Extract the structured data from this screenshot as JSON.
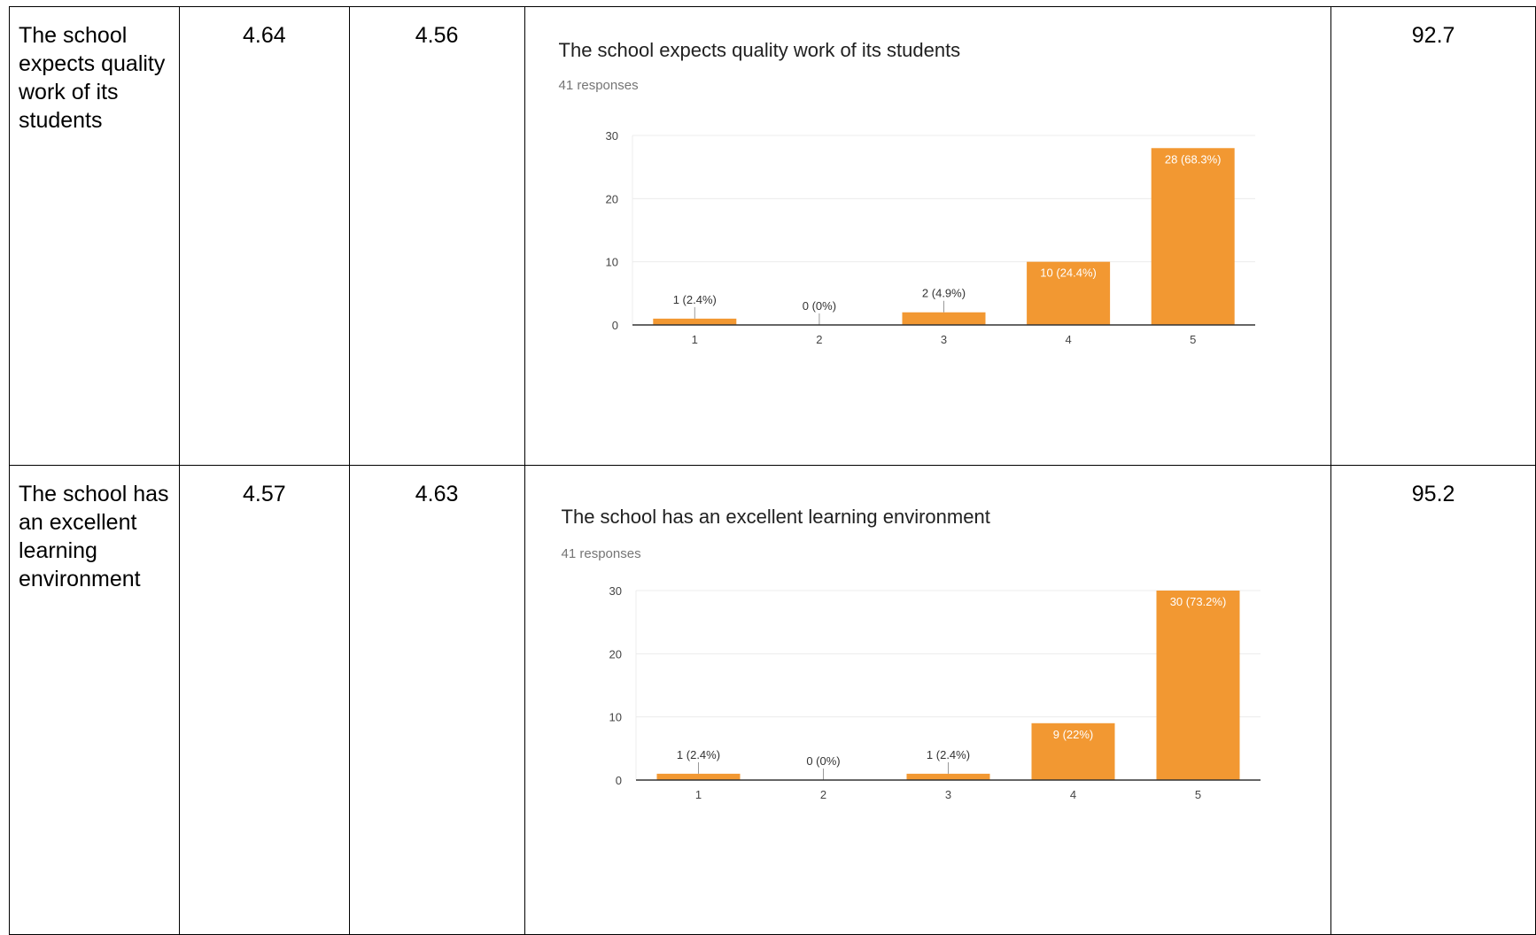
{
  "rows": [
    {
      "label": "The school expects quality work of its students",
      "value_a": "4.64",
      "value_b": "4.56",
      "percent": "92.7"
    },
    {
      "label": "The school has an excellent learning environment",
      "value_a": "4.57",
      "value_b": "4.63",
      "percent": "95.2"
    }
  ],
  "colors": {
    "bar": "#F29832",
    "grid": "#ECECEC",
    "axis": "#333333",
    "tick_text": "#444444",
    "label_outside": "#333333",
    "label_inside": "#FFFFFF"
  },
  "chart_data": [
    {
      "type": "bar",
      "title": "The school expects quality work of its students",
      "subtitle": "41 responses",
      "categories": [
        "1",
        "2",
        "3",
        "4",
        "5"
      ],
      "values": [
        1,
        0,
        2,
        10,
        28
      ],
      "data_labels": [
        "1 (2.4%)",
        "0 (0%)",
        "2 (4.9%)",
        "10 (24.4%)",
        "28 (68.3%)"
      ],
      "yticks": [
        "0",
        "10",
        "20",
        "30"
      ],
      "ylim": [
        0,
        30
      ],
      "grid": true
    },
    {
      "type": "bar",
      "title": "The school has an excellent learning environment",
      "subtitle": "41 responses",
      "categories": [
        "1",
        "2",
        "3",
        "4",
        "5"
      ],
      "values": [
        1,
        0,
        1,
        9,
        30
      ],
      "data_labels": [
        "1 (2.4%)",
        "0 (0%)",
        "1 (2.4%)",
        "9 (22%)",
        "30 (73.2%)"
      ],
      "yticks": [
        "0",
        "10",
        "20",
        "30"
      ],
      "ylim": [
        0,
        30
      ],
      "grid": true
    }
  ]
}
